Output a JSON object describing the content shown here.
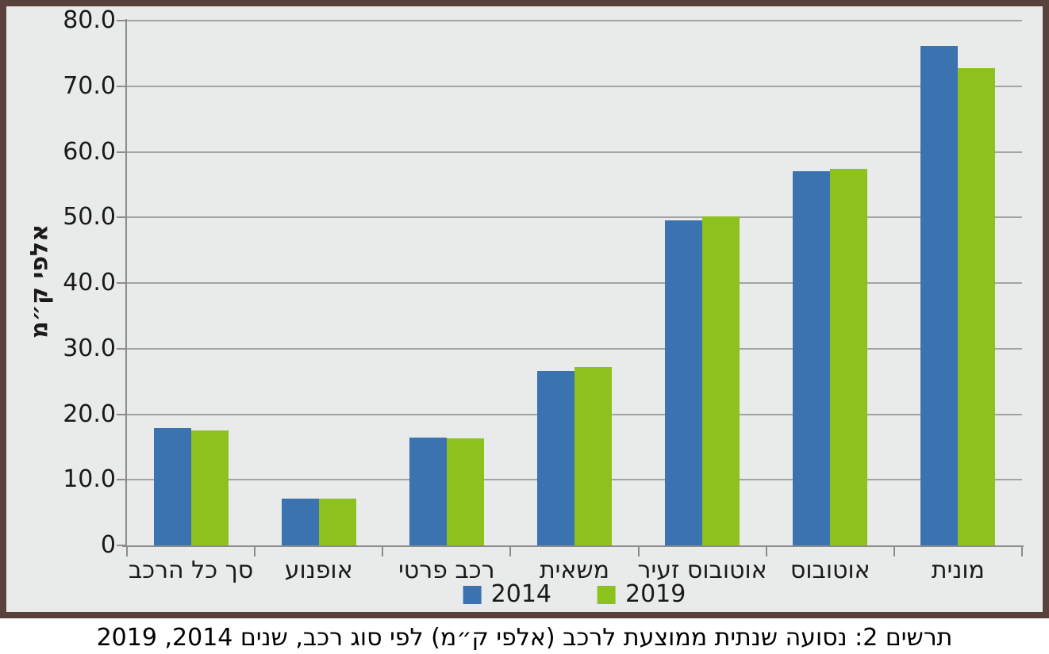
{
  "chart_data": {
    "type": "bar",
    "title": "תרשים 2: נסועה שנתית ממוצעת לרכב (אלפי ק״מ) לפי סוג רכב, שנים 2014, 2019",
    "ylabel": "אלפי ק״מ",
    "xlabel": "",
    "categories": [
      "סך כל הרכב",
      "אופנוע",
      "רכב פרטי",
      "משאית",
      "אוטובוס זעיר",
      "אוטובוס",
      "מונית"
    ],
    "series": [
      {
        "name": "2014",
        "color": "#3b72b0",
        "values": [
          17.9,
          7.1,
          16.4,
          26.6,
          49.5,
          57.1,
          76.1
        ]
      },
      {
        "name": "2019",
        "color": "#8cc11e",
        "values": [
          17.5,
          7.1,
          16.3,
          27.2,
          50.1,
          57.4,
          72.8
        ]
      }
    ],
    "ylim": [
      0,
      80
    ],
    "ytick_step": 10,
    "ytick_labels": [
      "0",
      "10.0",
      "20.0",
      "30.0",
      "40.0",
      "50.0",
      "60.0",
      "70.0",
      "80.0"
    ],
    "grid": "horizontal",
    "legend_position": "bottom"
  },
  "frame": {
    "border_color": "#5a423c",
    "background_color": "#e9eaea",
    "gridline_color": "#a3a3a3",
    "axis_color": "#8c8c8c"
  }
}
